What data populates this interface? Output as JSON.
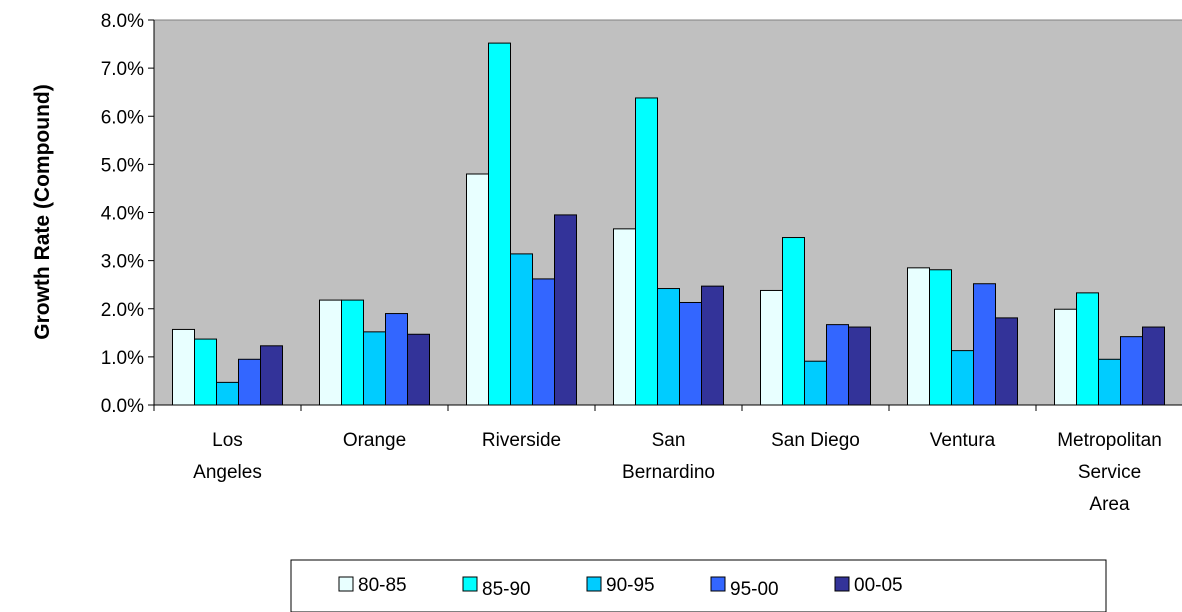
{
  "chart_data": {
    "type": "bar",
    "title": "",
    "xlabel": "",
    "ylabel": "Growth Rate (Compound)",
    "ylim": [
      0,
      0.08
    ],
    "y_tick_labels": [
      "0.0%",
      "1.0%",
      "2.0%",
      "3.0%",
      "4.0%",
      "5.0%",
      "6.0%",
      "7.0%",
      "8.0%"
    ],
    "categories": [
      [
        "Los",
        "Angeles"
      ],
      [
        "Orange"
      ],
      [
        "Riverside"
      ],
      [
        "San",
        "Bernardino"
      ],
      [
        "San Diego"
      ],
      [
        "Ventura"
      ],
      [
        "Metropolitan",
        "Service",
        "Area"
      ]
    ],
    "series": [
      {
        "name": "80-85",
        "color": "#e8ffff",
        "values": [
          0.0157,
          0.0218,
          0.048,
          0.0366,
          0.0238,
          0.0285,
          0.0199
        ]
      },
      {
        "name": "85-90",
        "color": "#00ffff",
        "values": [
          0.0137,
          0.0218,
          0.0752,
          0.0638,
          0.0348,
          0.0281,
          0.0233
        ]
      },
      {
        "name": "90-95",
        "color": "#00ccff",
        "values": [
          0.0047,
          0.0152,
          0.0314,
          0.0242,
          0.0091,
          0.0113,
          0.0095
        ]
      },
      {
        "name": "95-00",
        "color": "#3366ff",
        "values": [
          0.0095,
          0.019,
          0.0262,
          0.0213,
          0.0167,
          0.0252,
          0.0142
        ]
      },
      {
        "name": "00-05",
        "color": "#333399",
        "values": [
          0.0123,
          0.0147,
          0.0395,
          0.0247,
          0.0162,
          0.0181,
          0.0162
        ]
      }
    ],
    "plot_background": "#c0c0c0",
    "grid": false,
    "legend_position": "bottom"
  }
}
